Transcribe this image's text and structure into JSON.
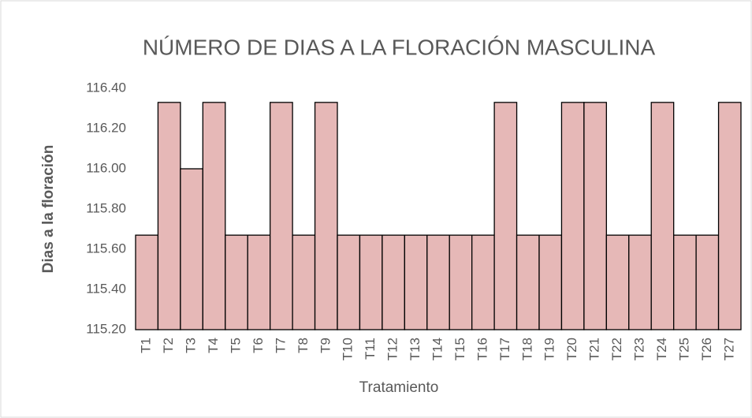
{
  "chart_data": {
    "type": "bar",
    "title": "NÚMERO DE DIAS A LA FLORACIÓN MASCULINA",
    "x_label": "Tratamiento",
    "y_label": "Dias a la floración",
    "categories": [
      "T1",
      "T2",
      "T3",
      "T4",
      "T5",
      "T6",
      "T7",
      "T8",
      "T9",
      "T10",
      "T11",
      "T12",
      "T13",
      "T14",
      "T15",
      "T16",
      "T17",
      "T18",
      "T19",
      "T20",
      "T21",
      "T22",
      "T23",
      "T24",
      "T25",
      "T26",
      "T27"
    ],
    "values": [
      115.67,
      116.33,
      116.0,
      116.33,
      115.67,
      115.67,
      116.33,
      115.67,
      116.33,
      115.67,
      115.67,
      115.67,
      115.67,
      115.67,
      115.67,
      115.67,
      116.33,
      115.67,
      115.67,
      116.33,
      116.33,
      115.67,
      115.67,
      116.33,
      115.67,
      115.67,
      116.33
    ],
    "color": "#e6b8b7",
    "ylim": [
      115.2,
      116.4
    ],
    "yticks": [
      {
        "value": 115.2,
        "label": "115.20"
      },
      {
        "value": 115.4,
        "label": "115.40"
      },
      {
        "value": 115.6,
        "label": "115.60"
      },
      {
        "value": 115.8,
        "label": "115.80"
      },
      {
        "value": 116.0,
        "label": "116.00"
      },
      {
        "value": 116.2,
        "label": "116.20"
      },
      {
        "value": 116.4,
        "label": "116.40"
      }
    ],
    "grid": false
  }
}
